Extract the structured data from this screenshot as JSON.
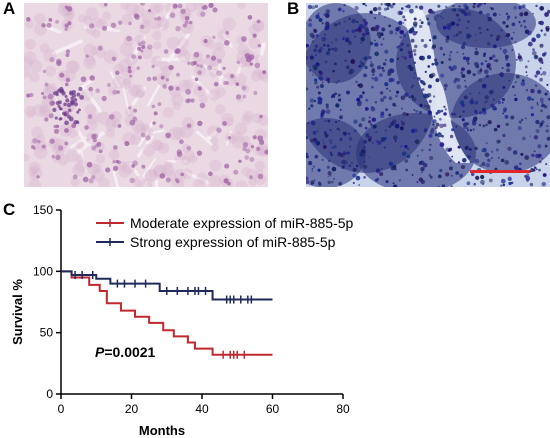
{
  "panels": {
    "a_label": "A",
    "b_label": "B",
    "c_label": "C"
  },
  "colors": {
    "moderate": "#c0282f",
    "strong": "#1f2a5a",
    "scale_bar": "#e0262b",
    "he_background": "#ead8e3",
    "ihc_background": "#c9d3ea"
  },
  "chart_data": {
    "type": "line",
    "subtype": "kaplan-meier",
    "xlabel": "Months",
    "ylabel": "Survival %",
    "xlim": [
      0,
      80
    ],
    "ylim": [
      0,
      150
    ],
    "xticks": [
      0,
      20,
      40,
      60,
      80
    ],
    "yticks": [
      0,
      50,
      100,
      150
    ],
    "annotation": {
      "italic": "P",
      "text": "=0.0021"
    },
    "legend_placement": "top-right",
    "series": [
      {
        "name": "Moderate expression of miR-885-5p",
        "color": "#c0282f",
        "steps": [
          [
            0,
            100
          ],
          [
            3,
            95
          ],
          [
            8,
            89
          ],
          [
            11,
            84
          ],
          [
            13,
            74
          ],
          [
            17,
            68
          ],
          [
            21,
            63
          ],
          [
            25,
            58
          ],
          [
            29,
            52
          ],
          [
            32,
            47
          ],
          [
            36,
            42
          ],
          [
            38,
            37
          ],
          [
            43,
            32
          ],
          [
            60,
            32
          ]
        ],
        "censored": [
          [
            46,
            32
          ],
          [
            48,
            32
          ],
          [
            49,
            32
          ],
          [
            50,
            32
          ],
          [
            52,
            32
          ]
        ]
      },
      {
        "name": "Strong expression of miR-885-5p",
        "color": "#1f2a5a",
        "steps": [
          [
            0,
            100
          ],
          [
            3,
            97
          ],
          [
            10,
            94
          ],
          [
            14,
            90
          ],
          [
            28,
            84
          ],
          [
            43,
            77
          ],
          [
            60,
            77
          ]
        ],
        "censored": [
          [
            4,
            97
          ],
          [
            6,
            97
          ],
          [
            9,
            97
          ],
          [
            16,
            90
          ],
          [
            18,
            90
          ],
          [
            21,
            90
          ],
          [
            24,
            90
          ],
          [
            30,
            84
          ],
          [
            33,
            84
          ],
          [
            36,
            84
          ],
          [
            38,
            84
          ],
          [
            39,
            84
          ],
          [
            41,
            84
          ],
          [
            47,
            77
          ],
          [
            48,
            77
          ],
          [
            49,
            77
          ],
          [
            51,
            77
          ],
          [
            53,
            77
          ],
          [
            54,
            77
          ]
        ]
      }
    ]
  }
}
